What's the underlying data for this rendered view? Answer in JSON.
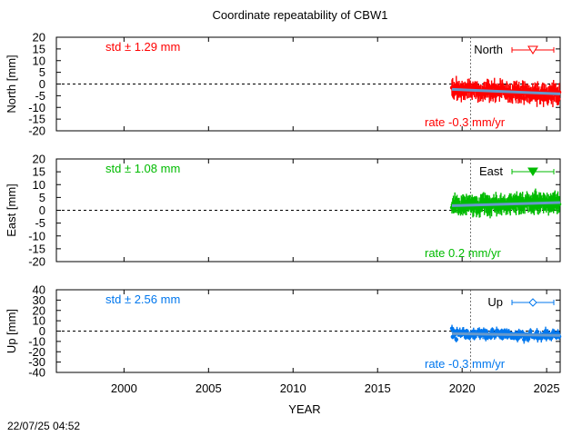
{
  "title": "Coordinate repeatability of CBW1",
  "timestamp": "22/07/25 04:52",
  "colors": {
    "north": "#ff0000",
    "east": "#00bb00",
    "up": "#0077ee",
    "fit": "#6699cc"
  },
  "chart_data": {
    "type": "scatter",
    "title": "Coordinate repeatability of CBW1",
    "xlabel": "YEAR",
    "xlim": [
      1996,
      2025.8
    ],
    "xticks": [
      2000,
      2005,
      2010,
      2015,
      2020,
      2025
    ],
    "reference_line_x": 2020.5,
    "data_start_x": 2019.4,
    "grid": false,
    "legend_position": "top-right",
    "panels": [
      {
        "key": "north",
        "ylabel": "North [mm]",
        "legend": "North",
        "marker": "open-triangle-down",
        "ylim": [
          -20,
          20
        ],
        "yticks": [
          20,
          15,
          10,
          5,
          0,
          -5,
          -10,
          -15,
          -20
        ],
        "std_text": "std ± 1.29 mm",
        "rate_text": "rate -0.3 mm/yr",
        "rate_mm_per_yr": -0.3,
        "std_mm": 1.29,
        "fit": {
          "x": [
            2019.4,
            2025.8
          ],
          "y": [
            -2.3,
            -4.2
          ]
        }
      },
      {
        "key": "east",
        "ylabel": "East [mm]",
        "legend": "East",
        "marker": "filled-triangle-down",
        "ylim": [
          -20,
          20
        ],
        "yticks": [
          20,
          15,
          10,
          5,
          0,
          -5,
          -10,
          -15,
          -20
        ],
        "std_text": "std ± 1.08 mm",
        "rate_text": "rate  0.2 mm/yr",
        "rate_mm_per_yr": 0.2,
        "std_mm": 1.08,
        "fit": {
          "x": [
            2019.4,
            2025.8
          ],
          "y": [
            1.8,
            3.0
          ]
        }
      },
      {
        "key": "up",
        "ylabel": "Up [mm]",
        "legend": "Up",
        "marker": "open-diamond",
        "ylim": [
          -40,
          40
        ],
        "yticks": [
          40,
          30,
          20,
          10,
          0,
          -10,
          -20,
          -30,
          -40
        ],
        "std_text": "std ± 2.56 mm",
        "rate_text": "rate -0.3 mm/yr",
        "rate_mm_per_yr": -0.3,
        "std_mm": 2.56,
        "fit": {
          "x": [
            2019.4,
            2025.8
          ],
          "y": [
            -2.5,
            -4.2
          ]
        }
      }
    ]
  }
}
